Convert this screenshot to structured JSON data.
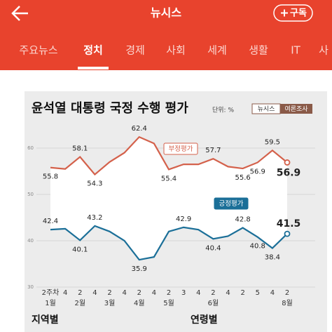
{
  "header": {
    "title": "뉴시스",
    "subscribe": "구독"
  },
  "tabs": {
    "items": [
      "주요뉴스",
      "정치",
      "경제",
      "사회",
      "세계",
      "생활",
      "IT",
      "사"
    ],
    "selected": 1
  },
  "chart_data": {
    "type": "line",
    "title": "윤석열 대통령 국정 수행 평가",
    "unit": "단위: %",
    "source": [
      "뉴시스",
      "여론조사"
    ],
    "categories": [
      "2주차",
      "4",
      "2",
      "4",
      "2",
      "4",
      "2",
      "4",
      "2",
      "3",
      "4",
      "2",
      "4",
      "2",
      "5",
      "4",
      "2"
    ],
    "months": [
      "1월",
      null,
      "2월",
      null,
      "3월",
      null,
      "4월",
      null,
      "5월",
      null,
      null,
      "6월",
      null,
      null,
      null,
      null,
      "8월"
    ],
    "ylim": [
      30,
      65
    ],
    "yticks": [
      30,
      40,
      50,
      60
    ],
    "grid": true,
    "series": [
      {
        "name": "부정평가",
        "color": "#d4614b",
        "values": [
          55.8,
          55.5,
          58.1,
          54.3,
          57.0,
          59.0,
          62.4,
          61.0,
          55.4,
          56.5,
          56.5,
          57.7,
          56.0,
          55.6,
          56.9,
          59.5,
          56.9
        ],
        "value_labels": [
          "55.8",
          null,
          "58.1",
          "54.3",
          null,
          null,
          "62.4",
          null,
          "55.4",
          null,
          null,
          "57.7",
          null,
          "55.6",
          "56.9",
          "59.5",
          "56.9"
        ]
      },
      {
        "name": "긍정평가",
        "color": "#1b6f98",
        "values": [
          42.4,
          42.6,
          40.1,
          43.2,
          42.0,
          40.0,
          35.9,
          36.5,
          42.0,
          42.9,
          42.4,
          40.4,
          41.0,
          42.8,
          40.8,
          38.4,
          41.5
        ],
        "value_labels": [
          "42.4",
          null,
          "40.1",
          "43.2",
          null,
          null,
          "35.9",
          null,
          null,
          "42.9",
          null,
          "40.4",
          null,
          "42.8",
          "40.8",
          "38.4",
          "41.5"
        ]
      }
    ],
    "footer": [
      "지역별",
      "연령별"
    ]
  }
}
